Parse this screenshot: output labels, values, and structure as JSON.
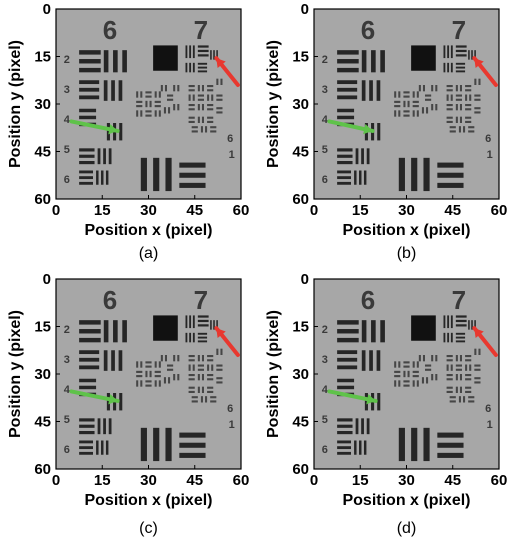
{
  "figure": {
    "panels": [
      {
        "id": "a",
        "caption": "(a)",
        "xlabel": "Position x (pixel)",
        "ylabel": "Position y (pixel)",
        "xticks": [
          "0",
          "15",
          "30",
          "45",
          "60"
        ],
        "yticks": [
          "0",
          "15",
          "30",
          "45",
          "60"
        ],
        "group_labels": [
          "6",
          "7"
        ]
      },
      {
        "id": "b",
        "caption": "(b)",
        "xlabel": "Position x (pixel)",
        "ylabel": "Position y (pixel)",
        "xticks": [
          "0",
          "15",
          "30",
          "45",
          "60"
        ],
        "yticks": [
          "0",
          "15",
          "30",
          "45",
          "60"
        ],
        "group_labels": [
          "6",
          "7"
        ]
      },
      {
        "id": "c",
        "caption": "(c)",
        "xlabel": "Position x (pixel)",
        "ylabel": "Position y (pixel)",
        "xticks": [
          "0",
          "15",
          "30",
          "45",
          "60"
        ],
        "yticks": [
          "0",
          "15",
          "30",
          "45",
          "60"
        ],
        "group_labels": [
          "6",
          "7"
        ]
      },
      {
        "id": "d",
        "caption": "(d)",
        "xlabel": "Position x (pixel)",
        "ylabel": "Position y (pixel)",
        "xticks": [
          "0",
          "15",
          "30",
          "45",
          "60"
        ],
        "yticks": [
          "0",
          "15",
          "30",
          "45",
          "60"
        ],
        "group_labels": [
          "6",
          "7"
        ]
      }
    ],
    "colors": {
      "background": "#a7a7a7",
      "bars": "#262626",
      "green_arrow": "#5fc24a",
      "red_arrow": "#e8382f"
    }
  }
}
